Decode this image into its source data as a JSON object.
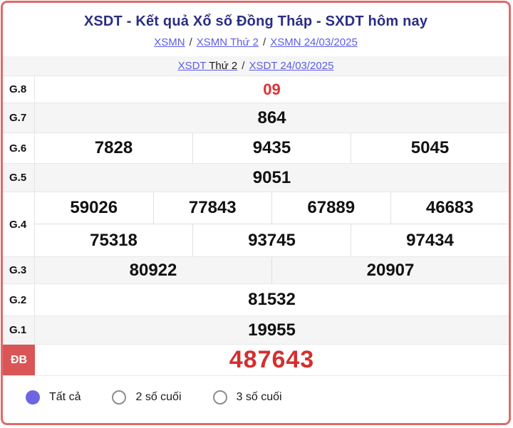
{
  "header": {
    "title": "XSDT - Kết quả Xổ số Đồng Tháp - SXDT hôm nay",
    "breadcrumb_region": {
      "link_xsmn": "XSMN",
      "sep1": "/",
      "link_xsmn_thu2": "XSMN Thứ 2",
      "sep2": "/",
      "link_xsmn_date": "XSMN 24/03/2025"
    },
    "breadcrumb_province": {
      "link_xsdt": "XSDT",
      "text_thu2": "Thứ 2",
      "sep": "/",
      "link_xsdt_date": "XSDT 24/03/2025"
    }
  },
  "results": {
    "g8": {
      "label": "G.8",
      "values": [
        "09"
      ]
    },
    "g7": {
      "label": "G.7",
      "values": [
        "864"
      ]
    },
    "g6": {
      "label": "G.6",
      "values": [
        "7828",
        "9435",
        "5045"
      ]
    },
    "g5": {
      "label": "G.5",
      "values": [
        "9051"
      ]
    },
    "g4": {
      "label": "G.4",
      "row1": [
        "59026",
        "77843",
        "67889",
        "46683"
      ],
      "row2": [
        "75318",
        "93745",
        "97434"
      ]
    },
    "g3": {
      "label": "G.3",
      "values": [
        "80922",
        "20907"
      ]
    },
    "g2": {
      "label": "G.2",
      "values": [
        "81532"
      ]
    },
    "g1": {
      "label": "G.1",
      "values": [
        "19955"
      ]
    },
    "db": {
      "label": "ĐB",
      "values": [
        "487643"
      ]
    }
  },
  "filters": {
    "options": [
      {
        "label": "Tất cả",
        "selected": true
      },
      {
        "label": "2 số cuối",
        "selected": false
      },
      {
        "label": "3 số cuối",
        "selected": false
      }
    ]
  },
  "colors": {
    "card_border": "#e06a6a",
    "title_text": "#2b2d84",
    "link_text": "#5d5ce6",
    "highlight_number": "#dd3232",
    "jackpot_number": "#d32f2f",
    "jackpot_label_bg": "#da5656",
    "radio_selected": "#6e65e2",
    "row_alt_bg": "#f5f5f6"
  }
}
